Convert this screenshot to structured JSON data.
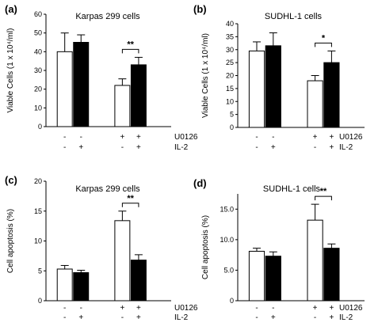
{
  "figure": {
    "style": {
      "bar_empty_color": "#ffffff",
      "bar_filled_color": "#000000",
      "axis_color": "#000000",
      "background": "#ffffff"
    },
    "treatment_labels": [
      "U0126",
      "IL-2"
    ]
  },
  "chart_data": [
    {
      "panel": "(a)",
      "type": "bar",
      "title": "Karpas 299 cells",
      "ylabel": "Viable Cells (1 x 10⁴/ml)",
      "ylim": [
        0,
        60
      ],
      "yticks": [
        0,
        10,
        20,
        30,
        40,
        50,
        60
      ],
      "tick_labels": [
        "0",
        "10",
        "20",
        "30",
        "40",
        "50",
        "60"
      ],
      "bars": [
        {
          "value": 40,
          "error": 10,
          "fill": "empty"
        },
        {
          "value": 45,
          "error": 4,
          "fill": "filled"
        },
        {
          "value": 22,
          "error": 3.5,
          "fill": "empty"
        },
        {
          "value": 33,
          "error": 4,
          "fill": "filled"
        }
      ],
      "treatments": {
        "U0126": [
          "-",
          "-",
          "+",
          "+"
        ],
        "IL-2": [
          "-",
          "+",
          "-",
          "+"
        ]
      },
      "significance": {
        "between": [
          2,
          3
        ],
        "label": "**"
      }
    },
    {
      "panel": "(b)",
      "type": "bar",
      "title": "SUDHL-1 cells",
      "ylabel": "Viable Cells (1 x 10⁴/ml)",
      "ylim": [
        0,
        40
      ],
      "yticks": [
        0,
        5,
        10,
        15,
        20,
        25,
        30,
        35,
        40
      ],
      "tick_labels": [
        "0",
        "5",
        "10",
        "15",
        "20",
        "25",
        "30",
        "35",
        "40"
      ],
      "bars": [
        {
          "value": 29.5,
          "error": 3.5,
          "fill": "empty"
        },
        {
          "value": 31.5,
          "error": 5,
          "fill": "filled"
        },
        {
          "value": 18,
          "error": 2,
          "fill": "empty"
        },
        {
          "value": 25,
          "error": 4.5,
          "fill": "filled"
        }
      ],
      "treatments": {
        "U0126": [
          "-",
          "-",
          "+",
          "+"
        ],
        "IL-2": [
          "-",
          "+",
          "-",
          "+"
        ]
      },
      "significance": {
        "between": [
          2,
          3
        ],
        "label": "*"
      }
    },
    {
      "panel": "(c)",
      "type": "bar",
      "title": "Karpas 299 cells",
      "ylabel": "Cell apoptosis (%)",
      "ylim": [
        0,
        20
      ],
      "yticks": [
        0,
        5,
        10,
        15,
        20
      ],
      "tick_labels": [
        "0",
        "5",
        "10",
        "15",
        "20"
      ],
      "bars": [
        {
          "value": 5.3,
          "error": 0.6,
          "fill": "empty"
        },
        {
          "value": 4.7,
          "error": 0.4,
          "fill": "filled"
        },
        {
          "value": 13.4,
          "error": 1.6,
          "fill": "empty"
        },
        {
          "value": 6.8,
          "error": 0.9,
          "fill": "filled"
        }
      ],
      "treatments": {
        "U0126": [
          "-",
          "-",
          "+",
          "+"
        ],
        "IL-2": [
          "-",
          "+",
          "-",
          "+"
        ]
      },
      "significance": {
        "between": [
          2,
          3
        ],
        "label": "**"
      }
    },
    {
      "panel": "(d)",
      "type": "bar",
      "title": "SUDHL-1 cells",
      "ylabel": "Cell apoptosis (%)",
      "ylim": [
        0,
        17.5
      ],
      "yticks": [
        0,
        5,
        10,
        15
      ],
      "tick_labels": [
        "0",
        "5.0",
        "10.0",
        "15.0"
      ],
      "bars": [
        {
          "value": 8.1,
          "error": 0.5,
          "fill": "empty"
        },
        {
          "value": 7.3,
          "error": 0.7,
          "fill": "filled"
        },
        {
          "value": 13.2,
          "error": 2.6,
          "fill": "empty"
        },
        {
          "value": 8.6,
          "error": 0.7,
          "fill": "filled"
        }
      ],
      "treatments": {
        "U0126": [
          "-",
          "-",
          "+",
          "+"
        ],
        "IL-2": [
          "-",
          "+",
          "-",
          "+"
        ]
      },
      "significance": {
        "between": [
          2,
          3
        ],
        "label": "**"
      }
    }
  ]
}
